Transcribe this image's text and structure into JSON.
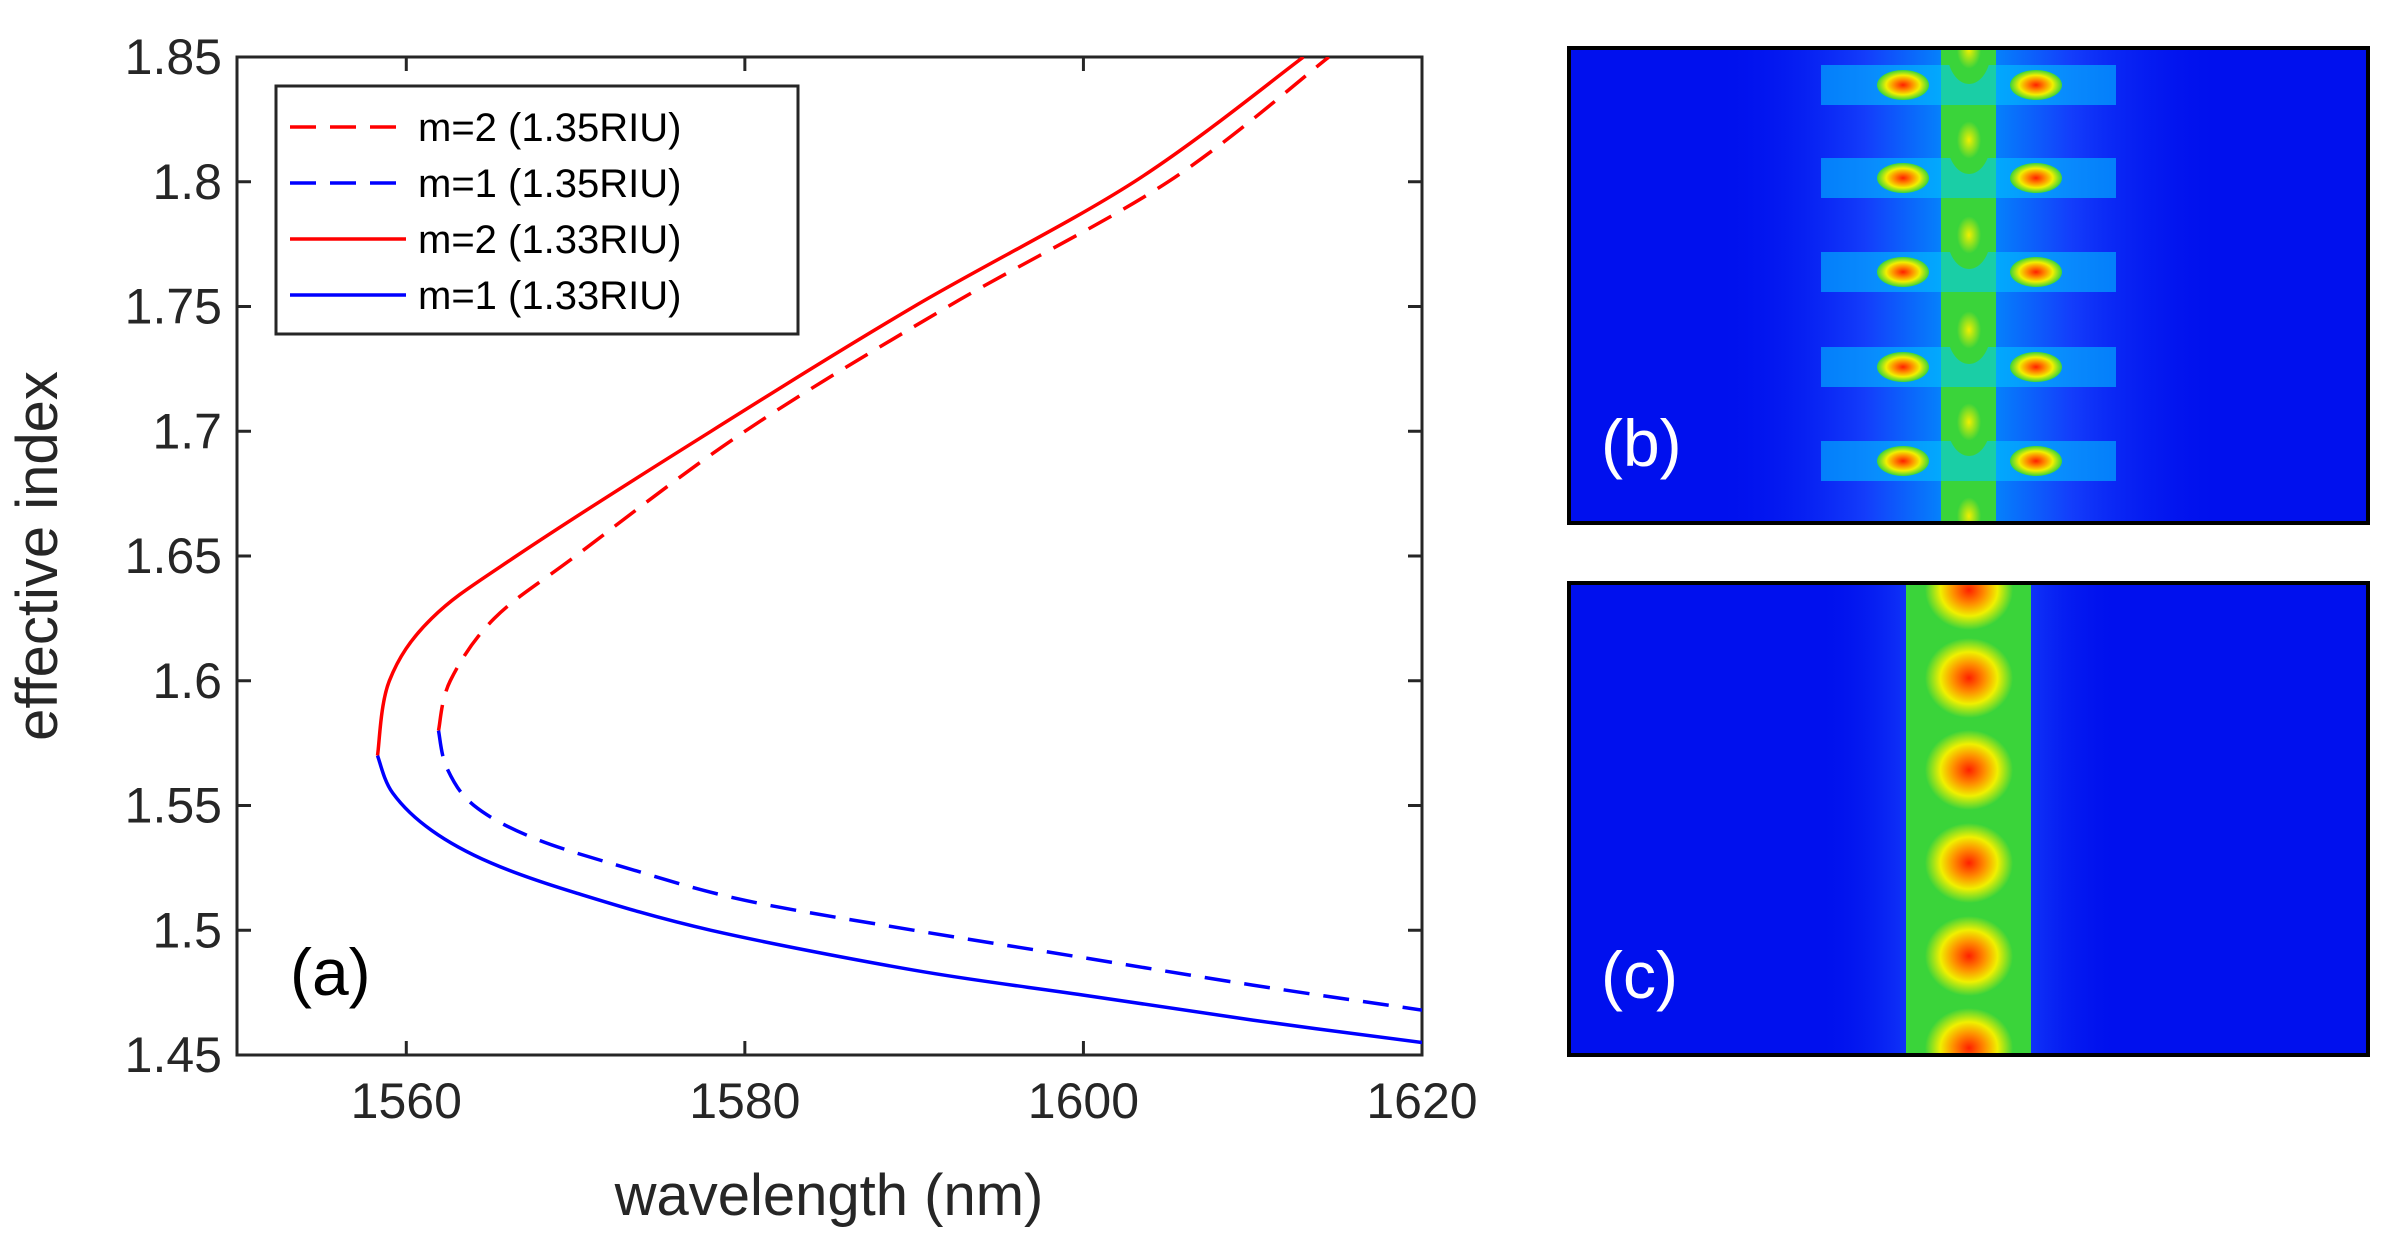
{
  "chart_data": [
    {
      "type": "line",
      "panel_label": "(a)",
      "xlabel": "wavelength (nm)",
      "ylabel": "effective index",
      "xlim": [
        1550,
        1620
      ],
      "ylim": [
        1.45,
        1.85
      ],
      "xticks": [
        1560,
        1580,
        1600,
        1620
      ],
      "yticks": [
        1.45,
        1.5,
        1.55,
        1.6,
        1.65,
        1.7,
        1.75,
        1.8,
        1.85
      ],
      "xtick_labels": [
        "1560",
        "1580",
        "1600",
        "1620"
      ],
      "ytick_labels": [
        "1.45",
        "1.5",
        "1.55",
        "1.6",
        "1.65",
        "1.7",
        "1.75",
        "1.8",
        "1.85"
      ],
      "legend_position": "top-left",
      "grid": false,
      "series": [
        {
          "name": "m=2 (1.35RIU)",
          "color": "#ff0000",
          "style": "dashed",
          "x": [
            1561.9,
            1562.6,
            1565.2,
            1570.0,
            1580.0,
            1592.0,
            1605.0,
            1614.5
          ],
          "y": [
            1.58,
            1.6,
            1.625,
            1.65,
            1.7,
            1.75,
            1.8,
            1.85
          ]
        },
        {
          "name": "m=1 (1.35RIU)",
          "color": "#0000ff",
          "style": "dashed",
          "x": [
            1561.9,
            1562.4,
            1564.0,
            1567.5,
            1573.0,
            1580.0,
            1590.0,
            1600.0,
            1610.0,
            1620.0
          ],
          "y": [
            1.58,
            1.565,
            1.55,
            1.537,
            1.525,
            1.512,
            1.5,
            1.489,
            1.478,
            1.468
          ]
        },
        {
          "name": "m=2 (1.33RIU)",
          "color": "#ff0000",
          "style": "solid",
          "x": [
            1558.3,
            1559.0,
            1561.5,
            1566.5,
            1578.0,
            1590.0,
            1603.0,
            1613.0
          ],
          "y": [
            1.57,
            1.6,
            1.625,
            1.65,
            1.7,
            1.75,
            1.8,
            1.85
          ]
        },
        {
          "name": "m=1 (1.33RIU)",
          "color": "#0000ff",
          "style": "solid",
          "x": [
            1558.3,
            1559.2,
            1561.5,
            1565.0,
            1570.0,
            1578.0,
            1590.0,
            1600.0,
            1610.0,
            1620.0
          ],
          "y": [
            1.57,
            1.555,
            1.54,
            1.527,
            1.515,
            1.5,
            1.484,
            1.474,
            1.464,
            1.455
          ]
        }
      ]
    }
  ],
  "panels": {
    "b": {
      "label": "(b)"
    },
    "c": {
      "label": "(c)"
    }
  },
  "colors": {
    "field_background": "#0010ee",
    "field_mid": "#00c8ff",
    "field_green": "#3ad43a",
    "field_yellow": "#f0f000",
    "field_hot": "#ff2000"
  }
}
